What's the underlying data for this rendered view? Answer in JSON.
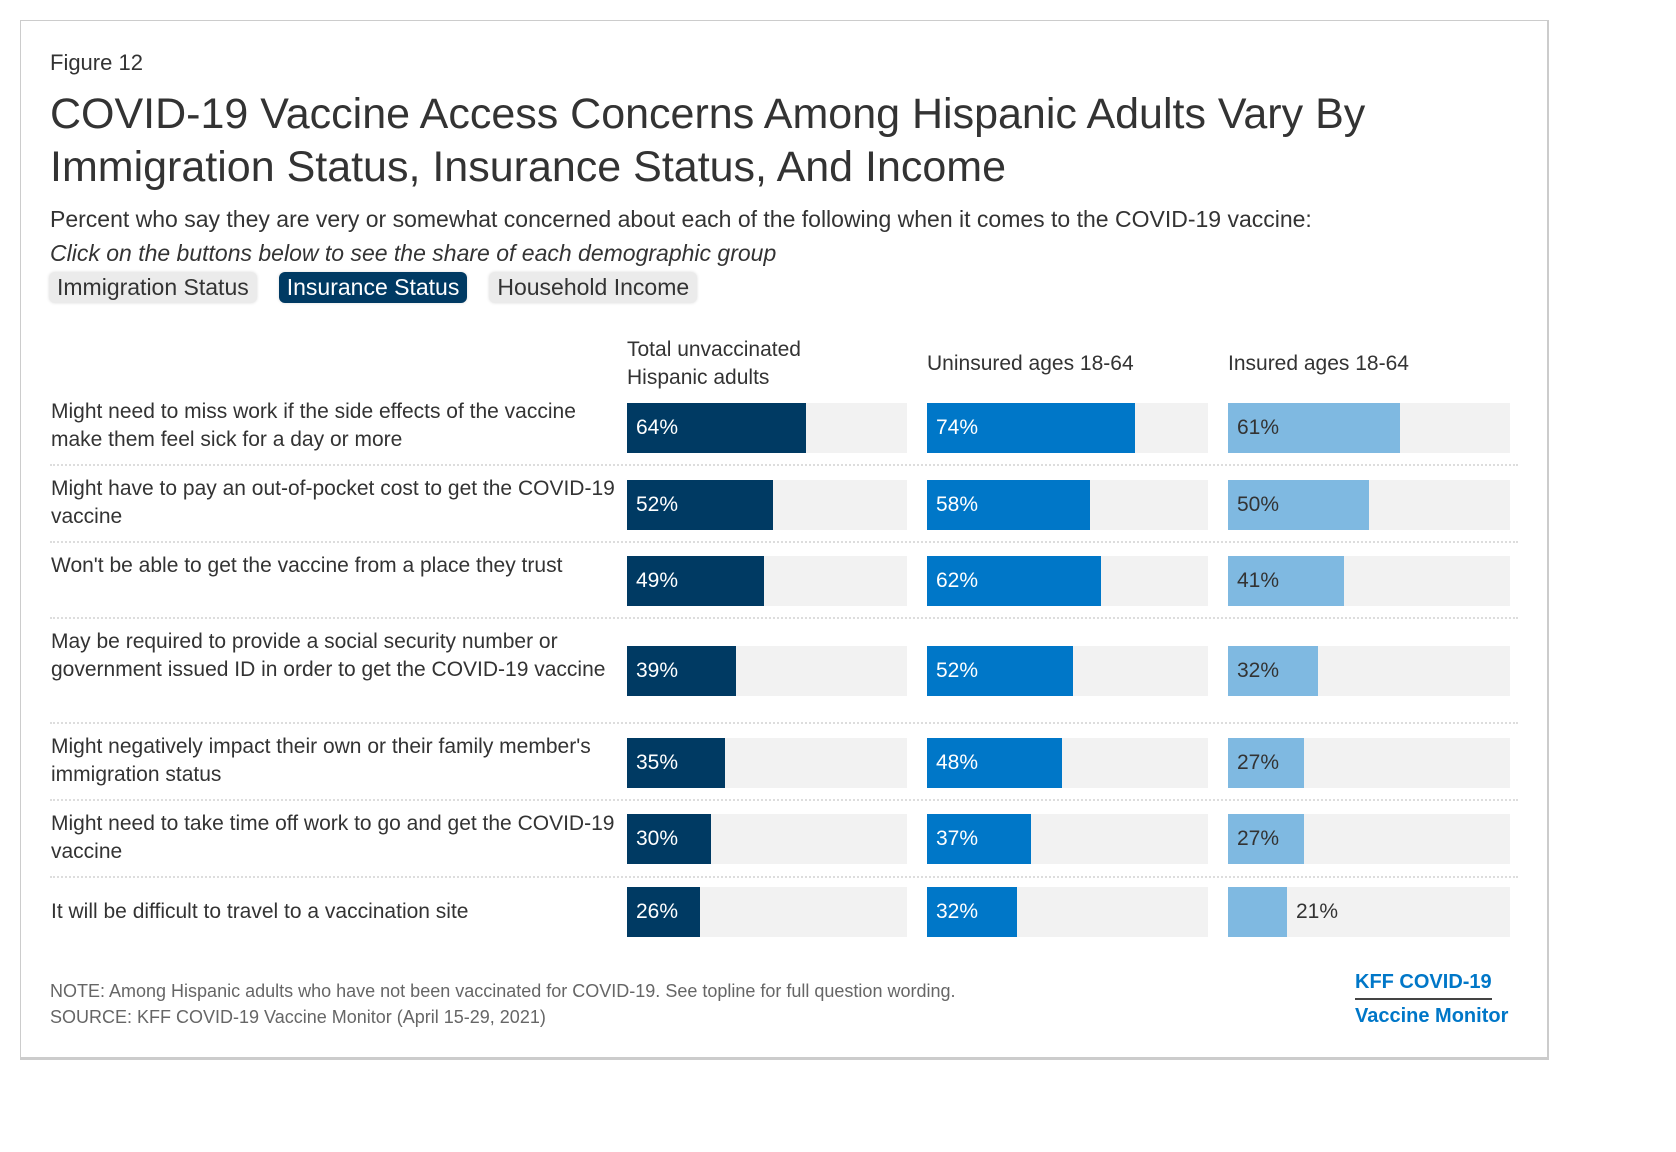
{
  "figure_label": "Figure 12",
  "title": "COVID-19 Vaccine Access Concerns Among Hispanic Adults Vary By Immigration Status, Insurance Status, And Income",
  "subtitle": "Percent who say they are very or somewhat concerned about each of the following when it comes to the COVID-19 vaccine:",
  "hint": "Click on the buttons below to see the share of each demographic group",
  "buttons": [
    {
      "label": "Immigration Status",
      "active": false
    },
    {
      "label": "Insurance Status",
      "active": true
    },
    {
      "label": "Household Income",
      "active": false
    }
  ],
  "colors": {
    "total": "#003a63",
    "uninsured": "#0077c8",
    "insured": "#7fb9e1",
    "track": "#f2f2f2"
  },
  "chart_data": {
    "type": "bar",
    "orientation": "horizontal",
    "xlim": [
      0,
      100
    ],
    "unit": "%",
    "categories": [
      "Might need to miss work if the side effects of the vaccine make them feel sick for a day or more",
      "Might have to pay an out-of-pocket cost to get the COVID-19 vaccine",
      "Won't be able to get the vaccine from a place they trust",
      "May be required to provide a social security number or government issued ID in order to get the COVID-19 vaccine",
      "Might negatively impact their own or their family member's immigration status",
      "Might need to take time off work to go and get the COVID-19 vaccine",
      "It will be difficult to travel to a vaccination site"
    ],
    "series": [
      {
        "name": "Total unvaccinated Hispanic adults",
        "values": [
          64,
          52,
          49,
          39,
          35,
          30,
          26
        ]
      },
      {
        "name": "Uninsured ages 18-64",
        "values": [
          74,
          58,
          62,
          52,
          48,
          37,
          32
        ]
      },
      {
        "name": "Insured ages 18-64",
        "values": [
          61,
          50,
          41,
          32,
          27,
          27,
          21
        ]
      }
    ]
  },
  "note": "NOTE: Among Hispanic adults who have not been vaccinated for COVID-19. See topline for full question wording.",
  "source": "SOURCE: KFF COVID-19 Vaccine Monitor (April 15-29, 2021)",
  "logo": {
    "line1": "KFF COVID-19",
    "line2": "Vaccine Monitor"
  }
}
